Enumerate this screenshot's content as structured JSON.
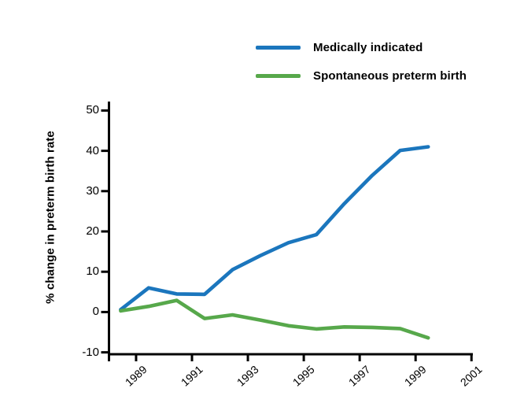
{
  "accent_colors": {
    "medically_indicated": "#1b76bd",
    "spontaneous": "#57a84b",
    "axis": "#000000"
  },
  "legend": {
    "items": [
      {
        "label": "Medically indicated",
        "color": "#1b76bd"
      },
      {
        "label": "Spontaneous preterm birth",
        "color": "#57a84b"
      }
    ]
  },
  "chart_data": {
    "type": "line",
    "title": "",
    "xlabel": "",
    "ylabel": "% change in preterm birth rate",
    "x_years": [
      1989,
      1990,
      1991,
      1992,
      1993,
      1994,
      1995,
      1996,
      1997,
      1998,
      1999,
      2000
    ],
    "x_plot_offset": -0.55,
    "series": [
      {
        "name": "Medically indicated",
        "color": "#1b76bd",
        "values": [
          0.6,
          6.0,
          4.5,
          4.4,
          10.5,
          14.0,
          17.2,
          19.2,
          26.9,
          33.9,
          40.1,
          41.0
        ]
      },
      {
        "name": "Spontaneous preterm birth",
        "color": "#57a84b",
        "values": [
          0.3,
          1.4,
          2.9,
          -1.6,
          -0.7,
          -2.0,
          -3.4,
          -4.2,
          -3.7,
          -3.8,
          -4.1,
          -6.4
        ]
      }
    ],
    "xticks": [
      1989,
      1991,
      1993,
      1995,
      1997,
      1999,
      2001
    ],
    "yticks": [
      50,
      40,
      30,
      20,
      10,
      0,
      -10
    ],
    "xlim": [
      1988.03,
      2001.05
    ],
    "ylim": [
      -10,
      50
    ],
    "grid": false,
    "legend_position": "top-right"
  }
}
